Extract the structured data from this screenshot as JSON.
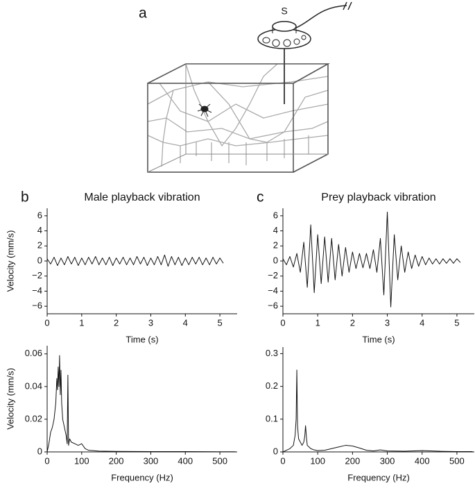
{
  "panel_labels": [
    "a",
    "b",
    "c"
  ],
  "diagram": {
    "speaker_label": "S"
  },
  "chart_data": [
    {
      "type": "line",
      "title": "Male playback vibration",
      "x_label": "Time (s)",
      "y_label": "Velocity (mm/s)",
      "xlim": [
        0,
        5.5
      ],
      "xticks": [
        0,
        1,
        2,
        3,
        4,
        5
      ],
      "ylim": [
        -7,
        7
      ],
      "yticks": [
        {
          "value": -6,
          "label": "−6"
        },
        {
          "value": -4,
          "label": "−4"
        },
        {
          "value": -2,
          "label": "−2"
        },
        0,
        2,
        4,
        6
      ],
      "x": [
        0,
        0.1,
        0.2,
        0.3,
        0.4,
        0.5,
        0.6,
        0.7,
        0.8,
        0.9,
        1.0,
        1.1,
        1.2,
        1.3,
        1.4,
        1.5,
        1.6,
        1.7,
        1.8,
        1.9,
        2.0,
        2.1,
        2.2,
        2.3,
        2.4,
        2.5,
        2.6,
        2.7,
        2.8,
        2.9,
        3.0,
        3.1,
        3.2,
        3.3,
        3.4,
        3.5,
        3.6,
        3.7,
        3.8,
        3.9,
        4.0,
        4.1,
        4.2,
        4.3,
        4.4,
        4.5,
        4.6,
        4.7,
        4.8,
        4.9,
        5.0,
        5.1
      ],
      "series": [
        {
          "color": "#111111",
          "values": [
            0.3,
            -0.4,
            0.5,
            -0.6,
            0.4,
            -0.5,
            0.6,
            -0.4,
            0.5,
            -0.6,
            0.4,
            -0.5,
            0.5,
            -0.4,
            0.6,
            -0.5,
            0.4,
            -0.5,
            0.5,
            -0.6,
            0.4,
            -0.4,
            0.5,
            -0.5,
            0.4,
            -0.5,
            0.6,
            -0.4,
            0.5,
            -0.6,
            0.4,
            -0.5,
            0.6,
            -0.5,
            0.8,
            -0.7,
            0.6,
            -0.5,
            0.5,
            -0.6,
            0.4,
            -0.5,
            0.5,
            -0.4,
            0.5,
            -0.5,
            0.4,
            -0.5,
            0.5,
            -0.4,
            0.4,
            -0.3
          ]
        }
      ]
    },
    {
      "type": "line",
      "title": "Prey playback vibration",
      "x_label": "Time (s)",
      "xlim": [
        0,
        5.5
      ],
      "xticks": [
        0,
        1,
        2,
        3,
        4,
        5
      ],
      "ylim": [
        -7,
        7
      ],
      "yticks": [
        {
          "value": -6,
          "label": "−6"
        },
        {
          "value": -4,
          "label": "−4"
        },
        {
          "value": -2,
          "label": "−2"
        },
        0,
        2,
        4,
        6
      ],
      "x": [
        0,
        0.1,
        0.2,
        0.3,
        0.4,
        0.5,
        0.6,
        0.7,
        0.8,
        0.9,
        1.0,
        1.1,
        1.2,
        1.3,
        1.4,
        1.5,
        1.6,
        1.7,
        1.8,
        1.9,
        2.0,
        2.1,
        2.2,
        2.3,
        2.4,
        2.5,
        2.6,
        2.7,
        2.8,
        2.9,
        3.0,
        3.1,
        3.2,
        3.3,
        3.4,
        3.5,
        3.6,
        3.7,
        3.8,
        3.9,
        4.0,
        4.1,
        4.2,
        4.3,
        4.4,
        4.5,
        4.6,
        4.7,
        4.8,
        4.9,
        5.0,
        5.1
      ],
      "series": [
        {
          "color": "#111111",
          "values": [
            0.3,
            -0.5,
            0.6,
            -0.8,
            1.0,
            -1.5,
            2.5,
            -3.5,
            4.8,
            -4.2,
            3.5,
            -3.0,
            3.2,
            -2.8,
            3.0,
            -2.5,
            2.2,
            -2.0,
            1.8,
            -1.5,
            1.2,
            -1.0,
            1.0,
            -0.9,
            1.0,
            -1.0,
            1.5,
            -1.5,
            3.0,
            -4.5,
            6.5,
            -6.1,
            3.5,
            -2.5,
            2.0,
            -1.5,
            1.2,
            -1.0,
            0.8,
            -0.7,
            0.6,
            -0.5,
            0.4,
            -0.4,
            0.3,
            -0.4,
            0.3,
            -0.3,
            0.3,
            -0.3,
            0.3,
            -0.2
          ]
        }
      ]
    },
    {
      "type": "line",
      "x_label": "Frequency (Hz)",
      "y_label": "Velocity (mm/s)",
      "xlim": [
        0,
        550
      ],
      "xticks": [
        0,
        100,
        200,
        300,
        400,
        500
      ],
      "ylim": [
        0,
        0.065
      ],
      "yticks": [
        0,
        0.02,
        0.04,
        0.06
      ],
      "x": [
        0,
        5,
        10,
        15,
        20,
        25,
        28,
        30,
        32,
        34,
        36,
        38,
        40,
        42,
        45,
        50,
        55,
        58,
        60,
        62,
        65,
        70,
        80,
        90,
        100,
        110,
        120,
        150,
        200,
        300,
        400,
        500,
        545
      ],
      "series": [
        {
          "color": "#111111",
          "values": [
            0,
            0.005,
            0.012,
            0.015,
            0.02,
            0.03,
            0.045,
            0.038,
            0.052,
            0.04,
            0.059,
            0.035,
            0.05,
            0.03,
            0.02,
            0.015,
            0.01,
            0.005,
            0.047,
            0.004,
            0.008,
            0.006,
            0.005,
            0.004,
            0.005,
            0.002,
            0.001,
            0.0005,
            0.0003,
            0.0002,
            0.0002,
            0.0001,
            0.0001
          ]
        }
      ]
    },
    {
      "type": "line",
      "x_label": "Frequency (Hz)",
      "xlim": [
        0,
        550
      ],
      "xticks": [
        0,
        100,
        200,
        300,
        400,
        500
      ],
      "ylim": [
        0,
        0.32
      ],
      "yticks": [
        0,
        0.1,
        0.2,
        0.3
      ],
      "x": [
        0,
        10,
        20,
        30,
        35,
        38,
        40,
        42,
        45,
        50,
        55,
        60,
        63,
        65,
        68,
        70,
        75,
        80,
        90,
        100,
        120,
        140,
        160,
        180,
        200,
        220,
        240,
        260,
        280,
        300,
        350,
        400,
        450,
        500,
        545
      ],
      "series": [
        {
          "color": "#111111",
          "values": [
            0,
            0.005,
            0.01,
            0.02,
            0.05,
            0.1,
            0.25,
            0.08,
            0.04,
            0.03,
            0.02,
            0.03,
            0.05,
            0.08,
            0.04,
            0.02,
            0.015,
            0.01,
            0.006,
            0.004,
            0.005,
            0.01,
            0.015,
            0.02,
            0.018,
            0.012,
            0.005,
            0.003,
            0.006,
            0.003,
            0.002,
            0.004,
            0.002,
            0.001,
            0.001
          ]
        }
      ]
    }
  ]
}
